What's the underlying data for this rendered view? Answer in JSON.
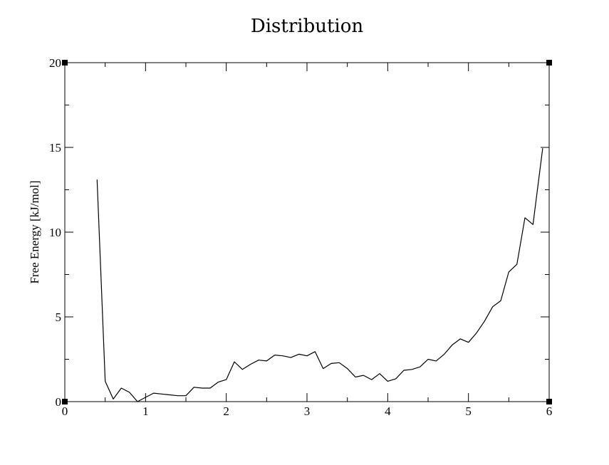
{
  "chart_data": {
    "type": "line",
    "title": "Distribution",
    "xlabel": "",
    "ylabel": "Free Energy [kJ/mol]",
    "xlim": [
      0,
      6
    ],
    "ylim": [
      0,
      20
    ],
    "x_ticks": [
      0,
      1,
      2,
      3,
      4,
      5,
      6
    ],
    "x_tick_labels": [
      "0",
      "1",
      "2",
      "3",
      "4",
      "5",
      "6"
    ],
    "y_ticks": [
      0,
      5,
      10,
      15,
      20
    ],
    "y_tick_labels": [
      "0",
      "5",
      "10",
      "15",
      "20"
    ],
    "x_minor_step": 0.5,
    "y_minor_step": 2.5,
    "grid": false,
    "series": [
      {
        "color": "#000000",
        "points": [
          [
            0.4,
            13.1
          ],
          [
            0.5,
            1.2
          ],
          [
            0.6,
            0.15
          ],
          [
            0.7,
            0.8
          ],
          [
            0.8,
            0.55
          ],
          [
            0.9,
            0.0
          ],
          [
            1.0,
            0.25
          ],
          [
            1.1,
            0.5
          ],
          [
            1.2,
            0.45
          ],
          [
            1.3,
            0.4
          ],
          [
            1.4,
            0.35
          ],
          [
            1.5,
            0.35
          ],
          [
            1.6,
            0.85
          ],
          [
            1.7,
            0.8
          ],
          [
            1.8,
            0.8
          ],
          [
            1.9,
            1.15
          ],
          [
            2.0,
            1.3
          ],
          [
            2.1,
            2.35
          ],
          [
            2.2,
            1.9
          ],
          [
            2.3,
            2.2
          ],
          [
            2.4,
            2.45
          ],
          [
            2.5,
            2.4
          ],
          [
            2.6,
            2.75
          ],
          [
            2.7,
            2.7
          ],
          [
            2.8,
            2.6
          ],
          [
            2.9,
            2.8
          ],
          [
            3.0,
            2.7
          ],
          [
            3.1,
            2.95
          ],
          [
            3.2,
            1.95
          ],
          [
            3.3,
            2.25
          ],
          [
            3.4,
            2.3
          ],
          [
            3.5,
            1.95
          ],
          [
            3.6,
            1.45
          ],
          [
            3.7,
            1.55
          ],
          [
            3.8,
            1.3
          ],
          [
            3.9,
            1.65
          ],
          [
            4.0,
            1.2
          ],
          [
            4.1,
            1.35
          ],
          [
            4.2,
            1.85
          ],
          [
            4.3,
            1.9
          ],
          [
            4.4,
            2.05
          ],
          [
            4.5,
            2.5
          ],
          [
            4.6,
            2.4
          ],
          [
            4.7,
            2.8
          ],
          [
            4.8,
            3.35
          ],
          [
            4.9,
            3.7
          ],
          [
            5.0,
            3.5
          ],
          [
            5.1,
            4.05
          ],
          [
            5.2,
            4.75
          ],
          [
            5.3,
            5.6
          ],
          [
            5.4,
            5.95
          ],
          [
            5.5,
            7.65
          ],
          [
            5.6,
            8.1
          ],
          [
            5.7,
            10.85
          ],
          [
            5.8,
            10.45
          ],
          [
            5.92,
            14.95
          ]
        ]
      }
    ]
  }
}
